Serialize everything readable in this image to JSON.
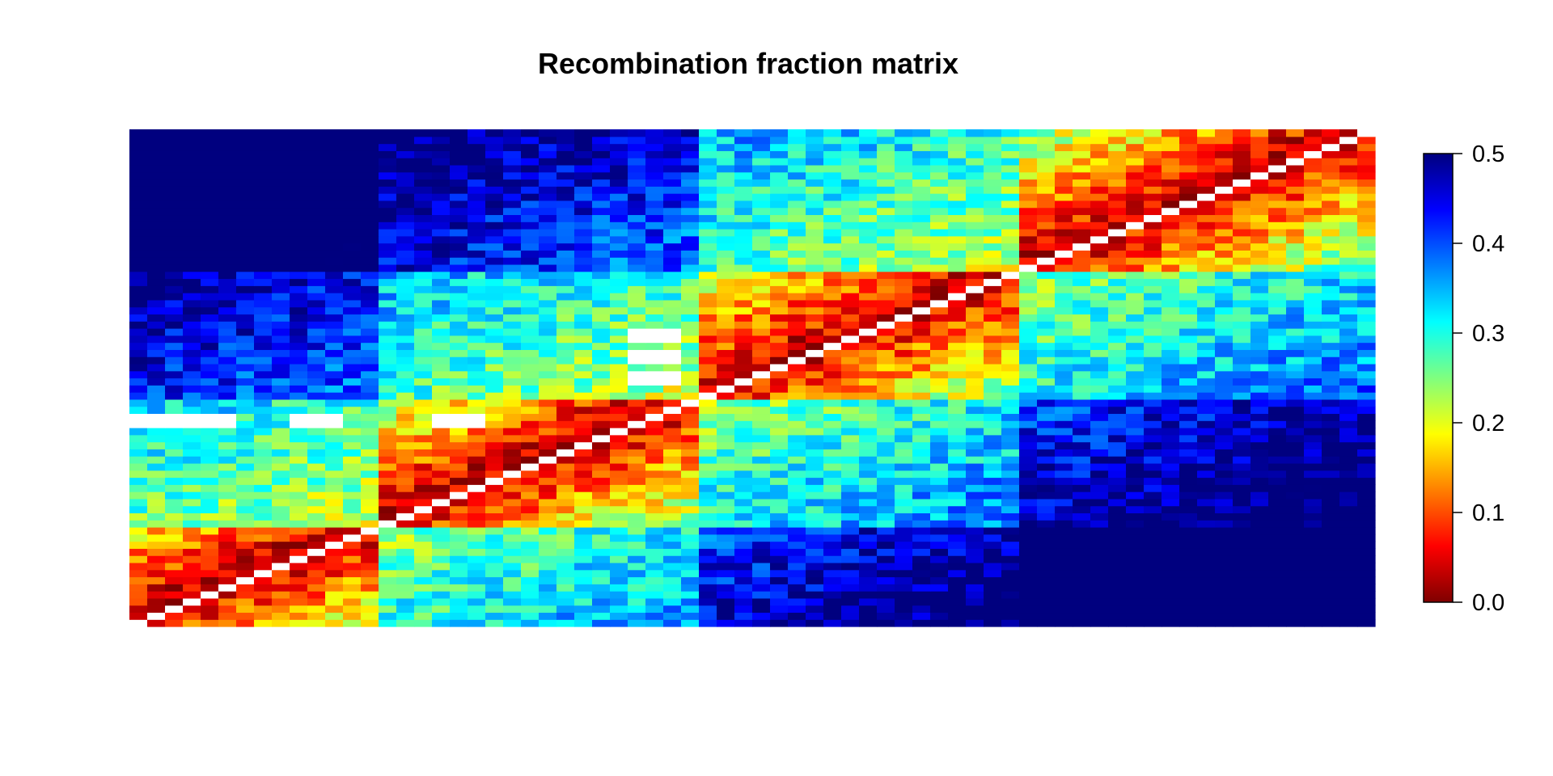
{
  "chart_data": {
    "type": "heatmap",
    "title": "Recombination fraction matrix",
    "xlabel": "",
    "ylabel": "",
    "n_markers": 70,
    "cell_value_encoding": "upper triangle = recombination fraction, lower triangle = LOD-derived scale; both mapped to 0.0–0.5 colorbar",
    "color_scale": {
      "range": [
        0.0,
        0.5
      ],
      "ticks": [
        "0.0",
        "0.1",
        "0.2",
        "0.3",
        "0.4",
        "0.5"
      ],
      "tick_values": [
        0.0,
        0.1,
        0.2,
        0.3,
        0.4,
        0.5
      ],
      "palette": [
        "#7f0000",
        "#ff0000",
        "#ff7f00",
        "#ffff00",
        "#7fff7f",
        "#00ffff",
        "#007fff",
        "#0000ff",
        "#00007f"
      ]
    },
    "missing_color": "#ffffff",
    "diagonal": "white (no value)",
    "linkage_blocks": [
      {
        "markers": [
          1,
          14
        ],
        "within_rf": 0.0
      },
      {
        "markers": [
          15,
          32
        ],
        "within_rf": 0.02
      },
      {
        "markers": [
          33,
          50
        ],
        "within_rf": 0.05
      },
      {
        "markers": [
          51,
          70
        ],
        "within_rf": 0.1
      }
    ],
    "missing_cells": [
      {
        "rows": [
          29,
          30
        ],
        "cols": [
          1,
          2
        ]
      },
      {
        "rows": [
          29,
          30
        ],
        "cols": [
          3,
          5
        ]
      },
      {
        "rows": [
          29,
          30
        ],
        "cols": [
          6
        ]
      },
      {
        "rows": [
          29,
          30
        ],
        "cols": [
          10,
          12
        ]
      },
      {
        "rows": [
          29,
          30
        ],
        "cols": [
          18,
          20
        ]
      },
      {
        "rows": [
          35,
          36
        ],
        "cols": [
          29,
          31
        ]
      },
      {
        "rows": [
          38,
          39
        ],
        "cols": [
          29,
          31
        ]
      },
      {
        "rows": [
          41,
          42
        ],
        "cols": [
          29,
          31
        ]
      }
    ]
  }
}
